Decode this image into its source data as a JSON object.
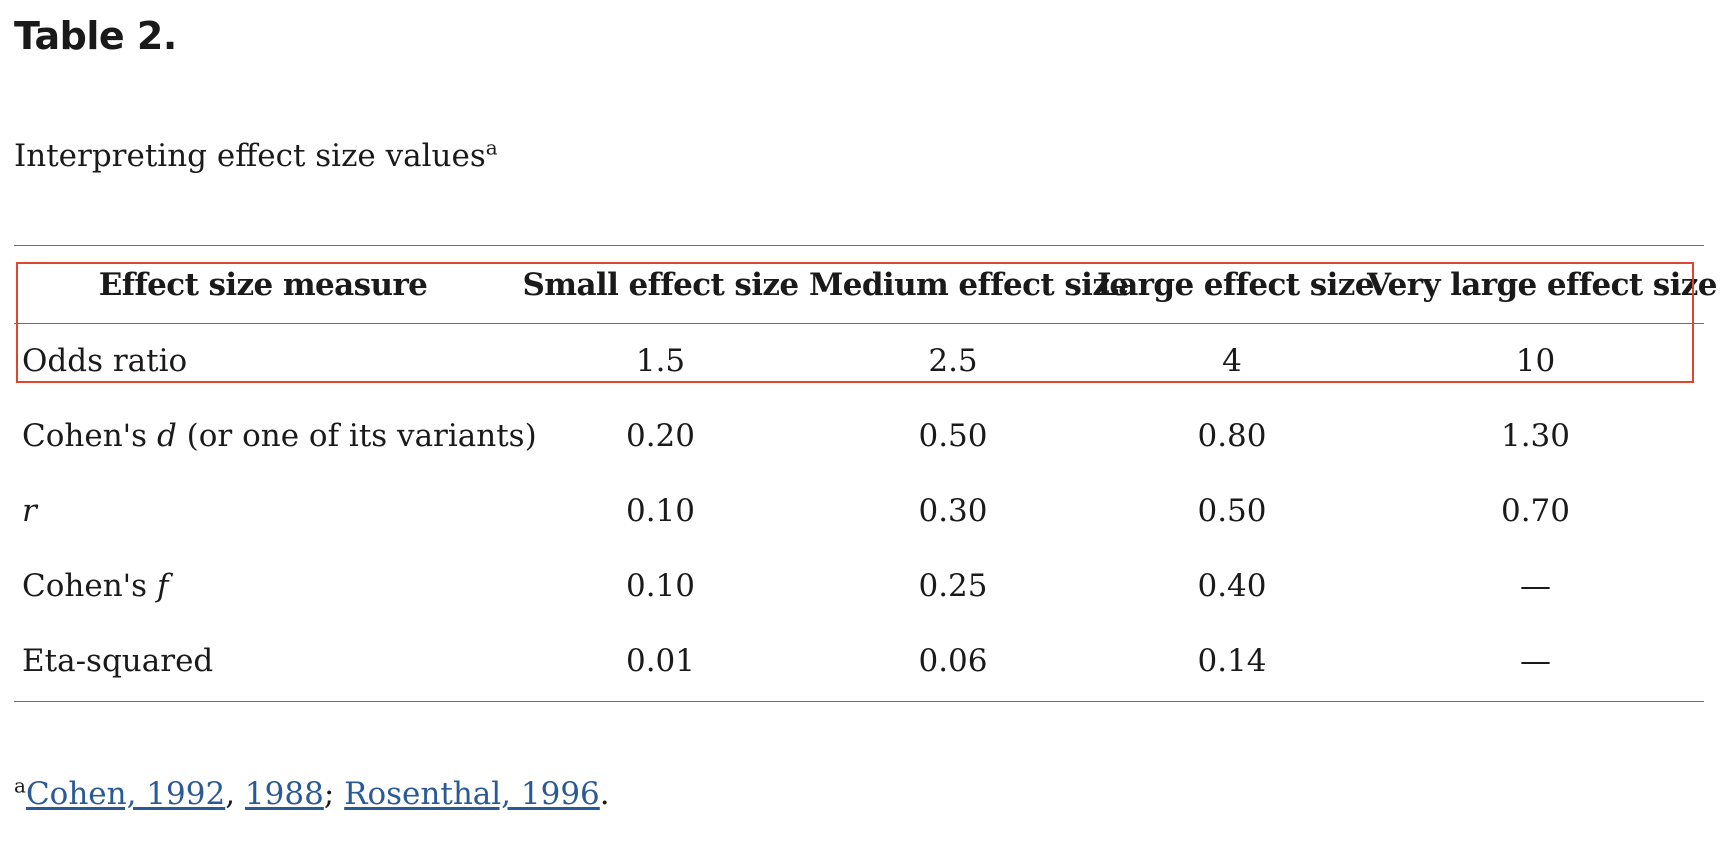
{
  "title": "Table 2.",
  "caption": {
    "text": "Interpreting effect size values",
    "footnote_marker": "a"
  },
  "table": {
    "headers": [
      "Effect size measure",
      "Small effect size",
      "Medium effect size",
      "Large effect size",
      "Very large effect size"
    ],
    "rows": [
      {
        "measure": "Odds ratio",
        "values": [
          "1.5",
          "2.5",
          "4",
          "10"
        ]
      },
      {
        "measure_prefix": "Cohen's ",
        "measure_italic": "d",
        "measure_suffix": " (or one of its variants)",
        "values": [
          "0.20",
          "0.50",
          "0.80",
          "1.30"
        ]
      },
      {
        "measure_italic": "r",
        "values": [
          "0.10",
          "0.30",
          "0.50",
          "0.70"
        ]
      },
      {
        "measure_prefix": "Cohen's ",
        "measure_italic": "f",
        "values": [
          "0.10",
          "0.25",
          "0.40",
          "—"
        ]
      },
      {
        "measure": "Eta-squared",
        "values": [
          "0.01",
          "0.06",
          "0.14",
          "—"
        ]
      }
    ]
  },
  "highlight": {
    "color": "#e0462e",
    "covers": "header row and Odds ratio row"
  },
  "footnote": {
    "marker": "a",
    "links": [
      {
        "text": "Cohen, 1992"
      },
      {
        "text": "1988"
      },
      {
        "text": "Rosenthal, 1996"
      }
    ],
    "separators": [
      ", ",
      "; ",
      "."
    ]
  },
  "colors": {
    "text": "#1a1a1a",
    "link": "#2a5a96",
    "rule": "#6f6f6f"
  }
}
